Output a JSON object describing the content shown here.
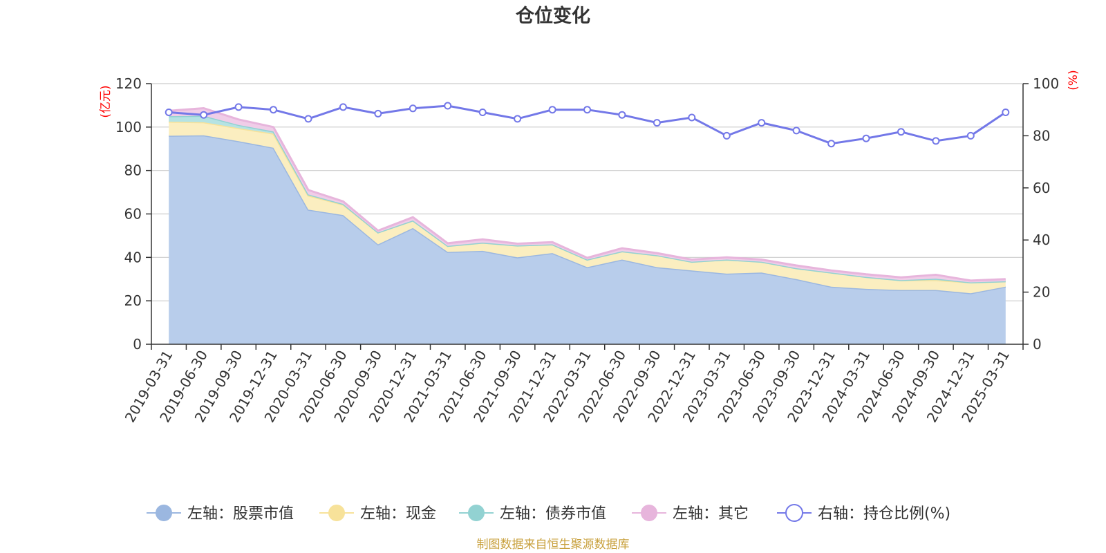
{
  "chart_data": {
    "type": "area",
    "title": "仓位变化",
    "left_axis_unit": "(亿元)",
    "right_axis_unit": "(%)",
    "left_ylim": [
      0,
      120
    ],
    "left_yticks": [
      0,
      20,
      40,
      60,
      80,
      100,
      120
    ],
    "right_ylim": [
      0,
      100
    ],
    "right_yticks": [
      0,
      20,
      40,
      60,
      80,
      100
    ],
    "grid": true,
    "legend_position": "bottom",
    "categories": [
      "2019-03-31",
      "2019-06-30",
      "2019-09-30",
      "2019-12-31",
      "2020-03-31",
      "2020-06-30",
      "2020-09-30",
      "2020-12-31",
      "2021-03-31",
      "2021-06-30",
      "2021-09-30",
      "2021-12-31",
      "2022-03-31",
      "2022-06-30",
      "2022-09-30",
      "2022-12-31",
      "2023-03-31",
      "2023-06-30",
      "2023-09-30",
      "2023-12-31",
      "2024-03-31",
      "2024-06-30",
      "2024-09-30",
      "2024-12-31",
      "2025-03-31"
    ],
    "series": [
      {
        "name": "左轴：股票市值",
        "axis": "left",
        "kind": "stacked-area",
        "color": "#9bb7e0",
        "fill": "#b8cdeb",
        "values": [
          96.0,
          96.2,
          93.5,
          90.5,
          62.0,
          59.5,
          46.0,
          53.5,
          42.5,
          43.0,
          40.0,
          42.0,
          35.5,
          39.0,
          35.5,
          34.0,
          32.5,
          33.0,
          30.0,
          26.5,
          25.5,
          25.0,
          25.0,
          23.5,
          26.5
        ]
      },
      {
        "name": "左轴：现金",
        "axis": "left",
        "kind": "stacked-area",
        "color": "#f7e29a",
        "fill": "#fbeec0",
        "values": [
          6.5,
          6.0,
          6.0,
          6.5,
          6.5,
          4.8,
          5.5,
          3.5,
          2.8,
          3.8,
          5.5,
          4.0,
          3.5,
          3.8,
          5.5,
          4.0,
          6.5,
          5.0,
          5.0,
          6.5,
          5.5,
          4.5,
          4.5,
          5.0,
          2.5
        ]
      },
      {
        "name": "左轴：债券市值",
        "axis": "left",
        "kind": "stacked-area",
        "color": "#92d2d2",
        "fill": "#b5e3e3",
        "values": [
          2.5,
          3.0,
          1.5,
          1.0,
          0.5,
          0.3,
          0,
          0,
          0,
          0,
          0,
          0,
          0,
          0,
          0,
          0,
          0,
          0,
          0,
          0,
          0,
          0,
          0.7,
          0,
          0
        ]
      },
      {
        "name": "左轴：其它",
        "axis": "left",
        "kind": "stacked-area",
        "color": "#e7b5dc",
        "fill": "#f0cde8",
        "values": [
          2.5,
          3.5,
          2.5,
          2.0,
          2.0,
          1.2,
          0.8,
          1.5,
          1.2,
          1.5,
          0.8,
          1.0,
          0.8,
          1.4,
          1.0,
          1.0,
          1.0,
          1.0,
          1.3,
          1.0,
          1.2,
          1.3,
          1.8,
          0.8,
          1.0
        ]
      },
      {
        "name": "右轴：持仓比例(%)",
        "axis": "right",
        "kind": "line",
        "color": "#7378e8",
        "values": [
          89.0,
          88.0,
          91.0,
          90.0,
          86.5,
          91.0,
          88.5,
          90.5,
          91.5,
          89.0,
          86.5,
          90.0,
          90.0,
          88.0,
          85.0,
          87.0,
          80.0,
          85.0,
          82.0,
          77.0,
          79.0,
          81.5,
          78.0,
          80.0,
          89.0
        ]
      }
    ]
  },
  "footer": {
    "source": "制图数据来自恒生聚源数据库"
  }
}
